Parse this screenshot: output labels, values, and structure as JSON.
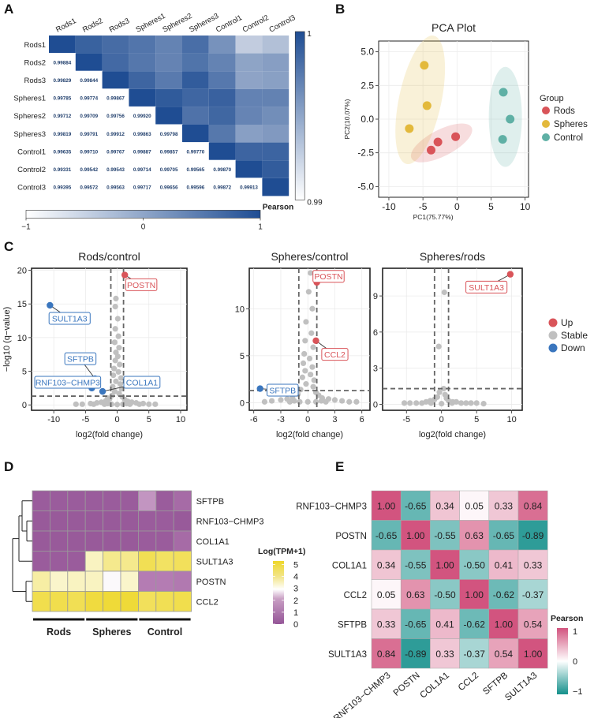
{
  "panel_labels": [
    "A",
    "B",
    "C",
    "D",
    "E"
  ],
  "colors": {
    "rods": "#d95459",
    "spheres": "#e3b93c",
    "control": "#5fb0a5",
    "stable": "#c0c0c0",
    "up": "#d95459",
    "down": "#3a76be",
    "corr_dark": "#1f4d93",
    "teal": "#14908b",
    "pink": "#d2547f",
    "purple": "#945597",
    "yellow": "#eed72a"
  },
  "chart_data": [
    {
      "id": "A",
      "type": "heatmap",
      "labels": [
        "Rods1",
        "Rods2",
        "Rods3",
        "Spheres1",
        "Spheres2",
        "Spheres3",
        "Control1",
        "Control2",
        "Control3"
      ],
      "lower_values": [
        [],
        [
          "0.99884"
        ],
        [
          "0.99829",
          "0.99844"
        ],
        [
          "0.99785",
          "0.99774",
          "0.99867"
        ],
        [
          "0.99712",
          "0.99709",
          "0.99756",
          "0.99920"
        ],
        [
          "0.99819",
          "0.99791",
          "0.99912",
          "0.99863",
          "0.99798"
        ],
        [
          "0.99635",
          "0.99710",
          "0.99767",
          "0.99887",
          "0.99857",
          "0.99770"
        ],
        [
          "0.99331",
          "0.99542",
          "0.99543",
          "0.99714",
          "0.99705",
          "0.99565",
          "0.99870"
        ],
        [
          "0.99395",
          "0.99572",
          "0.99563",
          "0.99717",
          "0.99656",
          "0.99596",
          "0.99872",
          "0.99913"
        ]
      ],
      "right_scale": {
        "min_label": "0.99",
        "max_label": "1",
        "title": "Pearson"
      },
      "bottom_scale": {
        "min_label": "−1",
        "mid_label": "0",
        "max_label": "1"
      }
    },
    {
      "id": "B",
      "type": "scatter",
      "title": "PCA Plot",
      "xlabel": "PC1(75.77%)",
      "ylabel": "PC2(10.07%)",
      "xlim": [
        -11.5,
        10.5
      ],
      "ylim": [
        -5.8,
        5.8
      ],
      "xticks": [
        -10,
        -5,
        0,
        5,
        10
      ],
      "yticks": [
        -5.0,
        -2.5,
        0.0,
        2.5,
        5.0
      ],
      "ytick_labels": [
        "-5.0",
        "-2.5",
        "0.0",
        "2.5",
        "5.0"
      ],
      "legend_title": "Group",
      "series": [
        {
          "name": "Rods",
          "color_key": "rods",
          "points": [
            [
              -3.8,
              -2.3
            ],
            [
              -2.8,
              -1.7
            ],
            [
              -0.2,
              -1.3
            ]
          ]
        },
        {
          "name": "Spheres",
          "color_key": "spheres",
          "points": [
            [
              -4.8,
              4.0
            ],
            [
              -4.4,
              1.0
            ],
            [
              -7.0,
              -0.7
            ]
          ]
        },
        {
          "name": "Control",
          "color_key": "control",
          "points": [
            [
              6.8,
              2.0
            ],
            [
              7.8,
              0.0
            ],
            [
              6.7,
              -1.5
            ]
          ]
        }
      ]
    },
    {
      "id": "C1",
      "type": "scatter",
      "title": "Rods/control",
      "xlabel": "log2(fold change)",
      "ylabel": "−log10 (q−value)",
      "xlim": [
        -13.5,
        11
      ],
      "ylim": [
        -0.8,
        20.3
      ],
      "xticks": [
        -10,
        -5,
        0,
        5,
        10
      ],
      "yticks": [
        0,
        5,
        10,
        15,
        20
      ],
      "vlines": [
        -1,
        1
      ],
      "hline": 1.3,
      "labeled_points": [
        {
          "label": "POSTN",
          "x": 1.2,
          "y": 19.3,
          "status": "up",
          "lx": 3.8,
          "ly": 17.8
        },
        {
          "label": "SULT1A3",
          "x": -10.6,
          "y": 14.8,
          "status": "down",
          "lx": -7.5,
          "ly": 12.8
        },
        {
          "label": "SFTPB",
          "x": -3.5,
          "y": 3.9,
          "status": "down",
          "lx": -5.8,
          "ly": 6.8
        },
        {
          "label": "RNF103−CHMP3",
          "x": -4.0,
          "y": 2.5,
          "status": "down",
          "lx": -7.8,
          "ly": 3.3
        },
        {
          "label": "COL1A1",
          "x": -2.3,
          "y": 2.0,
          "status": "down",
          "lx": 3.9,
          "ly": 3.3
        }
      ],
      "stable_points": [
        [
          -0.2,
          15.8
        ],
        [
          -0.3,
          14.6
        ],
        [
          0.1,
          12.8
        ],
        [
          -0.3,
          11.3
        ],
        [
          0.2,
          10.2
        ],
        [
          -0.4,
          9.3
        ],
        [
          0.3,
          8.5
        ],
        [
          -0.2,
          7.8
        ],
        [
          0.1,
          7.2
        ],
        [
          -0.3,
          6.6
        ],
        [
          0.4,
          6.0
        ],
        [
          -0.5,
          5.4
        ],
        [
          0.2,
          4.9
        ],
        [
          -0.6,
          4.4
        ],
        [
          0.6,
          4.0
        ],
        [
          -0.2,
          3.5
        ],
        [
          0.5,
          3.1
        ],
        [
          -0.7,
          2.7
        ],
        [
          0.7,
          2.4
        ],
        [
          -0.4,
          2.0
        ],
        [
          0.3,
          1.7
        ],
        [
          -0.8,
          1.4
        ],
        [
          0.8,
          1.2
        ],
        [
          -1.2,
          0.9
        ],
        [
          1.2,
          0.8
        ],
        [
          -1.8,
          0.6
        ],
        [
          1.7,
          0.5
        ],
        [
          -2.5,
          0.4
        ],
        [
          2.3,
          0.4
        ],
        [
          -3.2,
          0.3
        ],
        [
          3.0,
          0.3
        ],
        [
          -4.2,
          0.2
        ],
        [
          4.1,
          0.2
        ],
        [
          -5.5,
          0.1
        ],
        [
          5.0,
          0.1
        ],
        [
          6.0,
          0.1
        ],
        [
          -6.5,
          0.1
        ],
        [
          -1.5,
          0.2
        ],
        [
          1.5,
          0.2
        ],
        [
          0,
          0.05
        ],
        [
          -0.9,
          0.1
        ],
        [
          0.9,
          0.1
        ],
        [
          2.0,
          0.1
        ],
        [
          -2.0,
          0.1
        ],
        [
          3.5,
          0.1
        ],
        [
          -3.7,
          0.1
        ],
        [
          -1.5,
          1.0
        ]
      ]
    },
    {
      "id": "C2",
      "type": "scatter",
      "title": "Spheres/control",
      "xlabel": "log2(fold change)",
      "ylabel": "",
      "xlim": [
        -6.5,
        6.9
      ],
      "ylim": [
        -0.8,
        14.3
      ],
      "xticks": [
        -6,
        -3,
        0,
        3,
        6
      ],
      "yticks": [
        0,
        5,
        10
      ],
      "vlines": [
        -1,
        1
      ],
      "hline": 1.3,
      "labeled_points": [
        {
          "label": "POSTN",
          "x": 1.0,
          "y": 12.8,
          "status": "up",
          "lx": 2.3,
          "ly": 13.4
        },
        {
          "label": "CCL2",
          "x": 0.9,
          "y": 6.6,
          "status": "up",
          "lx": 3.0,
          "ly": 5.1
        },
        {
          "label": "SFTPB",
          "x": -5.3,
          "y": 1.5,
          "status": "down",
          "lx": -2.8,
          "ly": 1.3
        }
      ],
      "stable_points": [
        [
          0.3,
          13.8
        ],
        [
          0.1,
          11.8
        ],
        [
          0.5,
          10.0
        ],
        [
          -0.2,
          8.6
        ],
        [
          0.4,
          7.4
        ],
        [
          -0.3,
          6.6
        ],
        [
          0.6,
          5.9
        ],
        [
          -0.4,
          5.2
        ],
        [
          0.2,
          4.7
        ],
        [
          -0.5,
          4.2
        ],
        [
          0.5,
          3.8
        ],
        [
          -0.3,
          3.4
        ],
        [
          0.3,
          3.0
        ],
        [
          -0.6,
          2.7
        ],
        [
          0.7,
          2.4
        ],
        [
          -0.2,
          2.0
        ],
        [
          0.6,
          1.7
        ],
        [
          -0.8,
          1.4
        ],
        [
          0.9,
          1.1
        ],
        [
          -1.1,
          0.9
        ],
        [
          1.2,
          0.8
        ],
        [
          -1.7,
          0.6
        ],
        [
          1.6,
          0.5
        ],
        [
          -2.3,
          0.4
        ],
        [
          2.3,
          0.4
        ],
        [
          -3.0,
          0.3
        ],
        [
          3.0,
          0.3
        ],
        [
          -4.0,
          0.2
        ],
        [
          3.8,
          0.2
        ],
        [
          -4.8,
          0.1
        ],
        [
          4.6,
          0.1
        ],
        [
          5.4,
          0.1
        ],
        [
          -1.5,
          0.2
        ],
        [
          1.5,
          0.2
        ],
        [
          0,
          0.1
        ],
        [
          -0.9,
          0.1
        ],
        [
          0.9,
          0.1
        ],
        [
          2.0,
          0.1
        ],
        [
          -2.0,
          0.1
        ]
      ]
    },
    {
      "id": "C3",
      "type": "scatter",
      "title": "Spheres/rods",
      "xlabel": "log2(fold change)",
      "ylabel": "",
      "xlim": [
        -8.4,
        11.5
      ],
      "ylim": [
        -0.5,
        11.3
      ],
      "xticks": [
        -5,
        0,
        5,
        10
      ],
      "yticks": [
        0,
        3,
        6,
        9
      ],
      "vlines": [
        -1,
        1
      ],
      "hline": 1.3,
      "labeled_points": [
        {
          "label": "SULT1A3",
          "x": 9.8,
          "y": 10.8,
          "status": "up",
          "lx": 6.4,
          "ly": 9.7
        }
      ],
      "stable_points": [
        [
          0.4,
          9.3
        ],
        [
          -0.4,
          4.8
        ],
        [
          0.3,
          1.3
        ],
        [
          -0.3,
          1.0
        ],
        [
          0.5,
          0.8
        ],
        [
          -0.6,
          0.6
        ],
        [
          0.7,
          0.5
        ],
        [
          -1.0,
          0.4
        ],
        [
          1.0,
          0.3
        ],
        [
          -1.6,
          0.3
        ],
        [
          1.6,
          0.2
        ],
        [
          -2.2,
          0.2
        ],
        [
          2.1,
          0.2
        ],
        [
          -2.8,
          0.1
        ],
        [
          2.8,
          0.1
        ],
        [
          -3.6,
          0.1
        ],
        [
          3.5,
          0.1
        ],
        [
          -4.5,
          0.1
        ],
        [
          4.2,
          0.1
        ],
        [
          -5.3,
          0.1
        ],
        [
          5.0,
          0.1
        ],
        [
          6.0,
          0.05
        ],
        [
          -1.5,
          0.1
        ],
        [
          1.5,
          0.1
        ],
        [
          0,
          0.05
        ]
      ]
    },
    {
      "id": "D",
      "type": "heatmap",
      "rows": [
        "SFTPB",
        "RNF103−CHMP3",
        "COL1A1",
        "SULT1A3",
        "POSTN",
        "CCL2"
      ],
      "values": [
        [
          0.3,
          0.3,
          0.3,
          0.3,
          0.3,
          0.3,
          1.8,
          0.3,
          0.9
        ],
        [
          0.2,
          0.2,
          0.2,
          0.2,
          0.2,
          0.2,
          0.3,
          0.3,
          0.2
        ],
        [
          0.2,
          0.2,
          0.2,
          0.2,
          0.2,
          0.2,
          0.3,
          0.3,
          0.9
        ],
        [
          0.3,
          0.3,
          0.3,
          3.3,
          3.9,
          3.9,
          4.7,
          4.5,
          4.6
        ],
        [
          3.6,
          3.2,
          3.3,
          3.3,
          2.6,
          3.2,
          1.6,
          1.6,
          1.5
        ],
        [
          4.8,
          4.8,
          4.7,
          5.0,
          5.1,
          5.1,
          4.6,
          4.7,
          4.8
        ]
      ],
      "groups": [
        "Rods",
        "Spheres",
        "Control"
      ],
      "legend_title": "Log(TPM+1)",
      "legend_ticks": [
        "5",
        "4",
        "3",
        "2",
        "1",
        "0"
      ],
      "vmin": 0,
      "vmax": 5.3
    },
    {
      "id": "E",
      "type": "heatmap",
      "labels": [
        "RNF103−CHMP3",
        "POSTN",
        "COL1A1",
        "CCL2",
        "SFTPB",
        "SULT1A3"
      ],
      "values": [
        [
          "1.00",
          "-0.65",
          "0.34",
          "0.05",
          "0.33",
          "0.84"
        ],
        [
          "-0.65",
          "1.00",
          "-0.55",
          "0.63",
          "-0.65",
          "-0.89"
        ],
        [
          "0.34",
          "-0.55",
          "1.00",
          "-0.50",
          "0.41",
          "0.33"
        ],
        [
          "0.05",
          "0.63",
          "-0.50",
          "1.00",
          "-0.62",
          "-0.37"
        ],
        [
          "0.33",
          "-0.65",
          "0.41",
          "-0.62",
          "1.00",
          "0.54"
        ],
        [
          "0.84",
          "-0.89",
          "0.33",
          "-0.37",
          "0.54",
          "1.00"
        ]
      ],
      "legend_title": "Pearson",
      "legend_ticks": [
        "1",
        "0",
        "−1"
      ]
    }
  ],
  "volcano_legend": [
    {
      "label": "Up",
      "color_key": "up"
    },
    {
      "label": "Stable",
      "color_key": "stable"
    },
    {
      "label": "Down",
      "color_key": "down"
    }
  ]
}
